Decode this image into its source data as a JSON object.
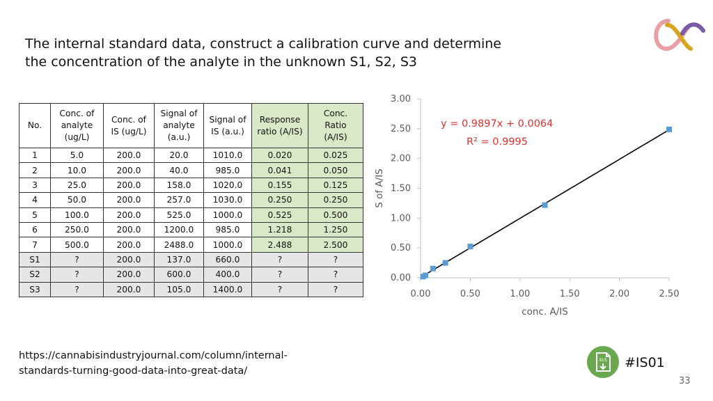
{
  "slide": {
    "title_line1": "The internal standard data, construct a calibration curve and determine",
    "title_line2": "the concentration of the analyte in the unknown S1, S2, S3",
    "url_line1": "https://cannabisindustryjournal.com/column/internal-",
    "url_line2": "standards-turning-good-data-into-great-data/",
    "badge_text": "#IS01",
    "badge_icon_label": "XLS",
    "page_number": "33",
    "colors": {
      "green_cell": "#d9e8c6",
      "unknown_row": "#e7e6e6",
      "logo_pink": "#e8a0a4",
      "logo_gold": "#d9a520",
      "logo_purple": "#7a5ca6",
      "icon_green": "#6aa84f"
    }
  },
  "table": {
    "headers": [
      {
        "l1": "No.",
        "l2": "",
        "l3": ""
      },
      {
        "l1": "Conc. of",
        "l2": "analyte",
        "l3": "(ug/L)"
      },
      {
        "l1": "Conc. of",
        "l2": "IS (ug/L)",
        "l3": ""
      },
      {
        "l1": "Signal of",
        "l2": "analyte",
        "l3": "(a.u.)"
      },
      {
        "l1": "Signal of",
        "l2": "IS (a.u.)",
        "l3": ""
      },
      {
        "l1": "Response",
        "l2": "ratio (A/IS)",
        "l3": ""
      },
      {
        "l1": "Conc.",
        "l2": "Ratio",
        "l3": "(A/IS)"
      }
    ],
    "rows": [
      [
        "1",
        "5.0",
        "200.0",
        "20.0",
        "1010.0",
        "0.020",
        "0.025"
      ],
      [
        "2",
        "10.0",
        "200.0",
        "40.0",
        "985.0",
        "0.041",
        "0.050"
      ],
      [
        "3",
        "25.0",
        "200.0",
        "158.0",
        "1020.0",
        "0.155",
        "0.125"
      ],
      [
        "4",
        "50.0",
        "200.0",
        "257.0",
        "1030.0",
        "0.250",
        "0.250"
      ],
      [
        "5",
        "100.0",
        "200.0",
        "525.0",
        "1000.0",
        "0.525",
        "0.500"
      ],
      [
        "6",
        "250.0",
        "200.0",
        "1200.0",
        "985.0",
        "1.218",
        "1.250"
      ],
      [
        "7",
        "500.0",
        "200.0",
        "2488.0",
        "1000.0",
        "2.488",
        "2.500"
      ],
      [
        "S1",
        "?",
        "200.0",
        "137.0",
        "660.0",
        "?",
        "?"
      ],
      [
        "S2",
        "?",
        "200.0",
        "600.0",
        "400.0",
        "?",
        "?"
      ],
      [
        "S3",
        "?",
        "200.0",
        "105.0",
        "1400.0",
        "?",
        "?"
      ]
    ]
  },
  "chart_data": {
    "type": "scatter",
    "xlabel": "conc. A/IS",
    "ylabel": "S of A/IS",
    "xlim": [
      0,
      2.5
    ],
    "ylim": [
      0,
      3.0
    ],
    "x_ticks": [
      "0.00",
      "0.50",
      "1.00",
      "1.50",
      "2.00",
      "2.50"
    ],
    "y_ticks": [
      "0.00",
      "0.50",
      "1.00",
      "1.50",
      "2.00",
      "2.50",
      "3.00"
    ],
    "x_tick_values": [
      0,
      0.5,
      1.0,
      1.5,
      2.0,
      2.5
    ],
    "y_tick_values": [
      0,
      0.5,
      1.0,
      1.5,
      2.0,
      2.5,
      3.0
    ],
    "points": [
      {
        "x": 0.025,
        "y": 0.02
      },
      {
        "x": 0.05,
        "y": 0.041
      },
      {
        "x": 0.125,
        "y": 0.155
      },
      {
        "x": 0.25,
        "y": 0.25
      },
      {
        "x": 0.5,
        "y": 0.525
      },
      {
        "x": 1.25,
        "y": 1.218
      },
      {
        "x": 2.5,
        "y": 2.488
      }
    ],
    "trendline": {
      "slope": 0.9897,
      "intercept": 0.0064
    },
    "equation": "y = 0.9897x + 0.0064",
    "r_squared": "R² = 0.9995",
    "grid": false,
    "marker_color": "#5b9bd5",
    "line_color": "#000000",
    "annotation_color": "#e03030"
  }
}
